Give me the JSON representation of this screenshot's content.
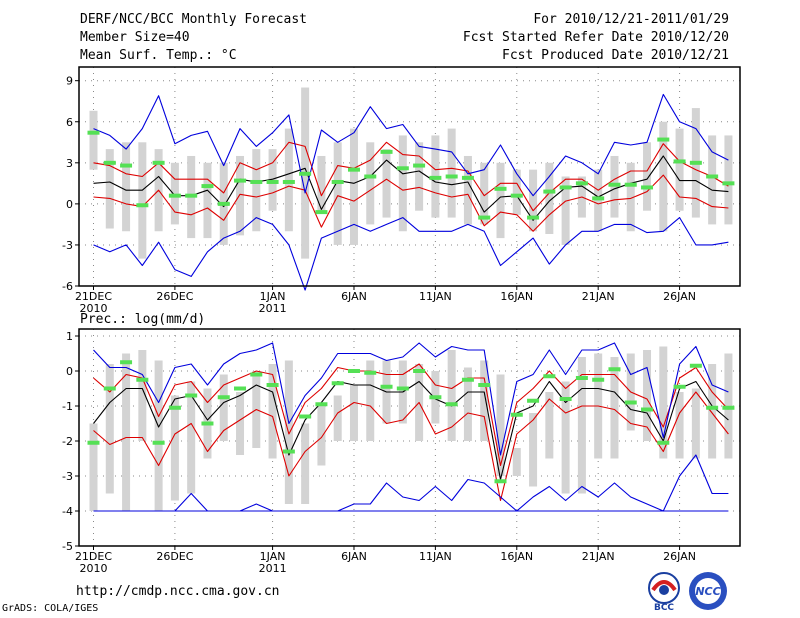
{
  "header": {
    "title": "DERF/NCC/BCC Monthly Forecast",
    "member_size": "Member Size=40",
    "variable": "Mean Surf. Temp.: °C",
    "period": "For 2010/12/21-2011/01/29",
    "fcst_started": "Fcst Started Refer Date 2010/12/20",
    "fcst_produced": "Fcst Produced Date 2010/12/21"
  },
  "footer": {
    "url": "http://cmdp.ncc.cma.gov.cn",
    "credit": "GrADS: COLA/IGES",
    "logo_bcc_text": "BCC",
    "logo_ncc_text": "NCC"
  },
  "colors": {
    "box": "#d3d3d3",
    "median": "#55e055",
    "mean": "#000000",
    "inner": "#dd0000",
    "outer": "#0000dd"
  },
  "chart_data": [
    {
      "type": "line",
      "name": "temperature",
      "title": "Mean Surf. Temp.: °C",
      "ylabel": "°C",
      "ylim": [
        -6,
        10
      ],
      "yticks": [
        9,
        6,
        3,
        0,
        -3,
        -6
      ],
      "xlim": [
        0,
        40
      ],
      "xticks": [
        {
          "x": 0,
          "label": "21DEC",
          "sub": "2010"
        },
        {
          "x": 5,
          "label": "26DEC",
          "sub": ""
        },
        {
          "x": 11,
          "label": "1JAN",
          "sub": "2011"
        },
        {
          "x": 16,
          "label": "6JAN",
          "sub": ""
        },
        {
          "x": 21,
          "label": "11JAN",
          "sub": ""
        },
        {
          "x": 26,
          "label": "16JAN",
          "sub": ""
        },
        {
          "x": 31,
          "label": "21JAN",
          "sub": ""
        },
        {
          "x": 36,
          "label": "26JAN",
          "sub": ""
        }
      ],
      "box_low": [
        2.5,
        -1.8,
        -2,
        -4,
        -2,
        -1.5,
        -2.5,
        -2.5,
        -3,
        -2.3,
        -2,
        -0.5,
        -2,
        -4,
        -0.5,
        -3,
        -3,
        -1.5,
        -1,
        -2,
        -0.5,
        -1,
        -1,
        -1.5,
        -1.5,
        -2.5,
        -0.8,
        -2,
        -2.2,
        -3,
        -1,
        -2,
        -1,
        -2,
        -0.5,
        -2,
        -0.5,
        -1,
        -1.5,
        -1.5
      ],
      "box_high": [
        6.8,
        4,
        4.5,
        4.5,
        4,
        3,
        3.5,
        3,
        3,
        3.5,
        4,
        4,
        5.5,
        8.5,
        3.5,
        4.5,
        5.5,
        4.5,
        4,
        5,
        4.5,
        5,
        5.5,
        3.5,
        3,
        3,
        2.5,
        2.5,
        3,
        2,
        2,
        2.5,
        3.5,
        3,
        4.5,
        6,
        5.5,
        7,
        5,
        5
      ],
      "median": [
        5.2,
        3,
        2.8,
        -0.1,
        3,
        0.6,
        0.6,
        1.3,
        0,
        1.7,
        1.6,
        1.6,
        1.6,
        2.2,
        -0.6,
        1.6,
        2.5,
        2,
        3.8,
        2.6,
        2.8,
        1.9,
        2,
        1.9,
        -1,
        1.1,
        0.6,
        -1,
        0.9,
        1.2,
        1.5,
        0.4,
        1.4,
        1.4,
        1.2,
        4.7,
        3.1,
        3,
        2,
        1.5
      ],
      "series": [
        {
          "name": "mean",
          "role": "mean",
          "values": [
            1.5,
            1.6,
            1,
            1,
            2,
            0.6,
            0.6,
            1,
            -0.2,
            1.8,
            1.6,
            1.8,
            2.2,
            2.6,
            -0.4,
            1.7,
            1.5,
            2,
            3.2,
            2.2,
            2.4,
            1.6,
            1.4,
            1.6,
            -0.6,
            0.5,
            0.6,
            -1.2,
            0.2,
            1.2,
            1.3,
            0.5,
            1.1,
            1.5,
            1.8,
            3.5,
            1.7,
            1.7,
            1,
            0.9
          ]
        },
        {
          "name": "upper",
          "role": "inner",
          "values": [
            3,
            2.8,
            2.2,
            2,
            3,
            1.8,
            1.8,
            1.8,
            0.8,
            3,
            2.5,
            3,
            4.5,
            4.2,
            0.6,
            2.8,
            2.6,
            3.2,
            4.5,
            3.6,
            3.5,
            2.5,
            2.6,
            2.4,
            0.6,
            1.5,
            1.5,
            -0.5,
            0.8,
            1.8,
            1.8,
            1,
            1.8,
            2.4,
            2.4,
            4.4,
            3.1,
            2.5,
            2,
            1.3
          ]
        },
        {
          "name": "lower",
          "role": "inner",
          "values": [
            0.5,
            0.4,
            0,
            -0.2,
            1,
            -0.6,
            -0.8,
            -0.3,
            -1.2,
            0.7,
            0.5,
            0.8,
            1.3,
            1,
            -1.7,
            0.6,
            0.2,
            1,
            1.8,
            1,
            1.2,
            0.8,
            0.5,
            0.7,
            -1.6,
            -0.6,
            -0.8,
            -2,
            -0.8,
            0.2,
            0.5,
            0,
            0.3,
            0.4,
            0.9,
            2.1,
            0.5,
            0.4,
            -0.2,
            -0.3
          ]
        },
        {
          "name": "max",
          "role": "outer",
          "values": [
            5.5,
            5,
            4,
            5.5,
            7.9,
            4.4,
            5,
            5.3,
            2.8,
            5.5,
            4.2,
            5.2,
            6.5,
            0.8,
            5.4,
            4.5,
            5.2,
            7.1,
            5.5,
            5.8,
            4.2,
            4,
            3.8,
            2.2,
            2.5,
            4.3,
            2.2,
            0.6,
            2,
            3.5,
            3,
            2.2,
            4.5,
            4.3,
            4.5,
            8,
            6,
            5.5,
            3.8,
            3.2
          ]
        },
        {
          "name": "min",
          "role": "outer",
          "values": [
            -3,
            -3.5,
            -3,
            -4.5,
            -2.8,
            -4.8,
            -5.3,
            -3.5,
            -2.5,
            -2,
            -1,
            -1.5,
            -3,
            -6.3,
            -2.5,
            -2,
            -1.5,
            -2,
            -1.5,
            -1,
            -2,
            -2,
            -2,
            -1.5,
            -2,
            -4.5,
            -3.5,
            -2.5,
            -4.4,
            -3,
            -2,
            -2,
            -1.5,
            -1.5,
            -2.1,
            -2,
            -1,
            -3,
            -3,
            -2.8
          ]
        }
      ]
    },
    {
      "type": "line",
      "name": "precipitation",
      "title": "Prec.: log(mm/d)",
      "ylabel": "log(mm/d)",
      "ylim": [
        -5,
        1.2
      ],
      "yticks": [
        1,
        0,
        -1,
        -2,
        -3,
        -4,
        -5
      ],
      "xlim": [
        0,
        40
      ],
      "xticks": [
        {
          "x": 0,
          "label": "21DEC",
          "sub": "2010"
        },
        {
          "x": 5,
          "label": "26DEC",
          "sub": ""
        },
        {
          "x": 11,
          "label": "1JAN",
          "sub": "2011"
        },
        {
          "x": 16,
          "label": "6JAN",
          "sub": ""
        },
        {
          "x": 21,
          "label": "11JAN",
          "sub": ""
        },
        {
          "x": 26,
          "label": "16JAN",
          "sub": ""
        },
        {
          "x": 31,
          "label": "21JAN",
          "sub": ""
        },
        {
          "x": 36,
          "label": "26JAN",
          "sub": ""
        }
      ],
      "box_low": [
        -4,
        -3.5,
        -4,
        -2,
        -4,
        -3.7,
        -3.5,
        -2.5,
        -2,
        -2.4,
        -2.2,
        -2.5,
        -3.8,
        -3.8,
        -2.7,
        -2,
        -2,
        -2,
        -1.5,
        -1.5,
        -2,
        -1.5,
        -2,
        -2,
        -2,
        -3,
        -3,
        -3.3,
        -2.5,
        -3.5,
        -3.5,
        -2.5,
        -2.5,
        -1.7,
        -2,
        -2.5,
        -2.5,
        -2.5,
        -2.5,
        -2.5
      ],
      "box_high": [
        -1.5,
        0.2,
        0.5,
        0.6,
        0.3,
        -0.7,
        -0.3,
        -0.5,
        -0.1,
        -0.6,
        0,
        0.2,
        0.3,
        -1.5,
        -0.9,
        -0.7,
        -0.4,
        0.3,
        0.3,
        0.3,
        0.2,
        0,
        0.6,
        0.1,
        0.3,
        -0.1,
        -2.2,
        -1.2,
        -0.6,
        -0.3,
        0.4,
        0.5,
        0.4,
        0.5,
        0.6,
        0.7,
        -0.6,
        -0.5,
        0.2,
        0.5
      ],
      "median": [
        -2.05,
        -0.5,
        0.25,
        -0.25,
        -2.05,
        -1.05,
        -0.7,
        -1.5,
        -0.75,
        -0.5,
        -0.1,
        -0.4,
        -2.3,
        -1.3,
        -0.95,
        -0.35,
        0,
        -0.05,
        -0.45,
        -0.5,
        0,
        -0.75,
        -0.95,
        -0.25,
        -0.4,
        -3.15,
        -1.25,
        -0.85,
        -0.15,
        -0.8,
        -0.2,
        -0.25,
        0.05,
        -0.9,
        -1.1,
        -2.05,
        -0.45,
        0.15,
        -1.05,
        -1.05
      ],
      "series": [
        {
          "name": "mean",
          "role": "mean",
          "values": [
            -1.5,
            -0.9,
            -0.5,
            -0.5,
            -1.6,
            -0.8,
            -0.7,
            -1.4,
            -0.9,
            -0.7,
            -0.4,
            -0.6,
            -2.4,
            -1.4,
            -0.9,
            -0.3,
            -0.4,
            -0.4,
            -0.6,
            -0.6,
            -0.3,
            -0.8,
            -1,
            -0.6,
            -0.6,
            -3.1,
            -1.2,
            -1,
            -0.3,
            -0.9,
            -0.5,
            -0.5,
            -0.6,
            -1.1,
            -1.2,
            -2,
            -0.5,
            -0.3,
            -1,
            -1.4
          ]
        },
        {
          "name": "upper",
          "role": "inner",
          "values": [
            -0.2,
            -0.6,
            -0.1,
            -0.2,
            -1.3,
            -0.4,
            -0.3,
            -0.9,
            -0.4,
            -0.2,
            0,
            -0.1,
            -1.8,
            -0.9,
            -0.5,
            0.1,
            0,
            0,
            -0.1,
            -0.1,
            0.2,
            -0.4,
            -0.5,
            -0.2,
            -0.2,
            -2.7,
            -0.9,
            -0.5,
            0,
            -0.5,
            -0.1,
            -0.1,
            -0.1,
            -0.6,
            -0.8,
            -1.6,
            -0.2,
            0.1,
            -0.6,
            -1.1
          ]
        },
        {
          "name": "lower",
          "role": "inner",
          "values": [
            -1.7,
            -2.1,
            -1.9,
            -1.9,
            -2.7,
            -1.8,
            -1.5,
            -2.3,
            -1.7,
            -1.4,
            -1.1,
            -1.3,
            -3,
            -2.3,
            -1.9,
            -1.2,
            -0.9,
            -1,
            -1.5,
            -1.4,
            -0.9,
            -1.8,
            -1.6,
            -1.2,
            -1.3,
            -3.7,
            -1.8,
            -1.4,
            -0.8,
            -1.2,
            -1,
            -1,
            -1.1,
            -1.5,
            -1.6,
            -2.3,
            -1.2,
            -0.6,
            -1.2,
            -1.8
          ]
        },
        {
          "name": "max",
          "role": "outer",
          "values": [
            0.6,
            0.1,
            0.1,
            -0.1,
            -0.9,
            0.1,
            0.2,
            -0.4,
            0.2,
            0.5,
            0.6,
            0.8,
            -1.5,
            -0.7,
            -0.2,
            0.5,
            0.5,
            0.5,
            0.3,
            0.4,
            0.8,
            0.4,
            0.7,
            0.6,
            0.6,
            -2.4,
            -0.3,
            -0.1,
            0.6,
            -0.1,
            0.6,
            0.6,
            0.8,
            -0.1,
            0.1,
            -1.9,
            0.2,
            0.7,
            -0.4,
            -0.6
          ]
        },
        {
          "name": "min",
          "role": "outer",
          "values": [
            -4,
            -4,
            -4,
            -4,
            -4,
            -4,
            -3.5,
            -4,
            -4,
            -4,
            -3.8,
            -4,
            -4,
            -4,
            -4,
            -4,
            -3.8,
            -3.8,
            -3.2,
            -3.6,
            -3.7,
            -3.3,
            -3.7,
            -3.1,
            -3.2,
            -3.6,
            -4,
            -3.6,
            -3.3,
            -3.7,
            -3.3,
            -3.6,
            -3.2,
            -3.6,
            -3.8,
            -4,
            -3,
            -2.4,
            -3.5,
            -3.5
          ]
        },
        {
          "name": "floor",
          "role": "outer",
          "values": [
            -4,
            -4,
            -4,
            -4,
            -4,
            -4,
            -4,
            -4,
            -4,
            -4,
            -4,
            -4,
            -4,
            -4,
            -4,
            -4,
            -4,
            -4,
            -4,
            -4,
            -4,
            -4,
            -4,
            -4,
            -4,
            -4,
            -4,
            -4,
            -4,
            -4,
            -4,
            -4,
            -4,
            -4,
            -4,
            -4,
            -4,
            -4,
            -4,
            -4
          ]
        }
      ]
    }
  ]
}
